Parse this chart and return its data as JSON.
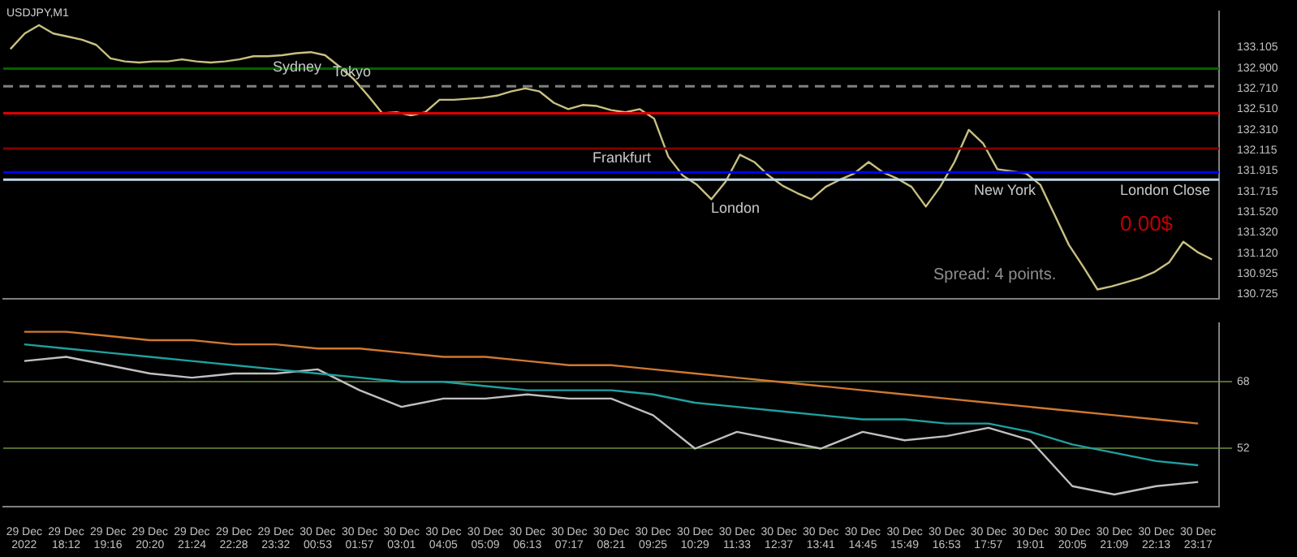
{
  "chart_data": [
    {
      "type": "line",
      "title": "USDJPY,M1",
      "categories": [
        null,
        null,
        null,
        null,
        null,
        null,
        null,
        null,
        null,
        null,
        null,
        null,
        null,
        null,
        null,
        null,
        null,
        null,
        null,
        null,
        null,
        null,
        null,
        null,
        null,
        null,
        null,
        null,
        null,
        null,
        null,
        null,
        null,
        null,
        null,
        null,
        null,
        null,
        null,
        null,
        null,
        null,
        null,
        null,
        null,
        null,
        null,
        null,
        null,
        null,
        null,
        null,
        null,
        null,
        null,
        null,
        null,
        null,
        null,
        null,
        null,
        null,
        null,
        null,
        null,
        null,
        null,
        null,
        null,
        null,
        null,
        null,
        null,
        null,
        null,
        null,
        null,
        null,
        null,
        null,
        null,
        null,
        null,
        null,
        null
      ],
      "series": [
        {
          "color": "#c8c080",
          "values": [
            133.09,
            133.24,
            133.32,
            133.24,
            133.21,
            133.18,
            133.13,
            133.0,
            132.97,
            132.96,
            132.97,
            132.97,
            132.99,
            132.97,
            132.96,
            132.97,
            132.99,
            133.02,
            133.02,
            133.03,
            133.05,
            133.06,
            133.03,
            132.92,
            132.8,
            132.64,
            132.47,
            132.48,
            132.45,
            132.48,
            132.6,
            132.6,
            132.61,
            132.62,
            132.64,
            132.68,
            132.71,
            132.68,
            132.57,
            132.51,
            132.55,
            132.54,
            132.5,
            132.48,
            132.51,
            132.42,
            132.05,
            131.87,
            131.78,
            131.64,
            131.81,
            132.07,
            132.0,
            131.87,
            131.77,
            131.7,
            131.64,
            131.76,
            131.83,
            131.89,
            132.0,
            131.9,
            131.84,
            131.76,
            131.57,
            131.76,
            132.0,
            132.31,
            132.18,
            131.93,
            131.91,
            131.89,
            131.78,
            131.49,
            131.2,
            130.99,
            130.77,
            130.8,
            130.84,
            130.88,
            130.94,
            131.03,
            131.23,
            131.13,
            131.06
          ]
        }
      ],
      "ylim": [
        130.68,
        133.45
      ],
      "yticks": [
        {
          "value": 133.105,
          "label": "133.105"
        },
        {
          "value": 132.9,
          "label": "132.900"
        },
        {
          "value": 132.71,
          "label": "132.710"
        },
        {
          "value": 132.51,
          "label": "132.510"
        },
        {
          "value": 132.31,
          "label": "132.310"
        },
        {
          "value": 132.115,
          "label": "132.115"
        },
        {
          "value": 131.915,
          "label": "131.915"
        },
        {
          "value": 131.715,
          "label": "131.715"
        },
        {
          "value": 131.52,
          "label": "131.520"
        },
        {
          "value": 131.32,
          "label": "131.320"
        },
        {
          "value": 131.12,
          "label": "131.120"
        },
        {
          "value": 130.925,
          "label": "130.925"
        },
        {
          "value": 130.725,
          "label": "130.725"
        }
      ],
      "ref_lines": [
        {
          "axis": "y",
          "value": 132.9,
          "color": "#006400"
        },
        {
          "axis": "y",
          "value": 132.73,
          "color": "#808080",
          "line_style": "dashed"
        },
        {
          "axis": "y",
          "value": 132.47,
          "color": "#e00000"
        },
        {
          "axis": "y",
          "value": 132.13,
          "color": "#800000"
        },
        {
          "axis": "y",
          "value": 131.9,
          "color": "#0000ff"
        },
        {
          "axis": "y",
          "value": 131.83,
          "color": "#c0d8e8"
        }
      ],
      "annotations": [
        "Sydney",
        "Tokyo",
        "Frankfurt",
        "London",
        "New York",
        "London Close",
        "Spread: 4 points.",
        "0.00$"
      ],
      "tick_labels": "y",
      "grid": false,
      "legend": false,
      "marker": "none",
      "line_style": "solid"
    },
    {
      "type": "line",
      "categories": [
        "29 Dec 2022",
        "29 Dec 18:12",
        "29 Dec 19:16",
        "29 Dec 20:20",
        "29 Dec 21:24",
        "29 Dec 22:28",
        "29 Dec 23:32",
        "30 Dec 00:53",
        "30 Dec 01:57",
        "30 Dec 03:01",
        "30 Dec 04:05",
        "30 Dec 05:09",
        "30 Dec 06:13",
        "30 Dec 07:17",
        "30 Dec 08:21",
        "30 Dec 09:25",
        "30 Dec 10:29",
        "30 Dec 11:33",
        "30 Dec 12:37",
        "30 Dec 13:41",
        "30 Dec 14:45",
        "30 Dec 15:49",
        "30 Dec 16:53",
        "30 Dec 17:57",
        "30 Dec 19:01",
        "30 Dec 20:05",
        "30 Dec 21:09",
        "30 Dec 22:13",
        "30 Dec 23:17"
      ],
      "series": [
        {
          "color": "#d07830",
          "values": [
            80,
            80,
            79,
            78,
            78,
            77,
            77,
            76,
            76,
            75,
            74,
            74,
            73,
            72,
            72,
            71,
            70,
            69,
            68,
            67,
            66,
            65,
            64,
            63,
            62,
            61,
            60,
            59,
            58
          ]
        },
        {
          "color": "#20a0a0",
          "values": [
            77,
            76,
            75,
            74,
            73,
            72,
            71,
            70,
            69,
            68,
            68,
            67,
            66,
            66,
            66,
            65,
            63,
            62,
            61,
            60,
            59,
            59,
            58,
            58,
            56,
            53,
            51,
            49,
            48
          ]
        },
        {
          "color": "#c0c0c0",
          "values": [
            73,
            74,
            72,
            70,
            69,
            70,
            70,
            71,
            66,
            62,
            64,
            64,
            65,
            64,
            64,
            60,
            52,
            56,
            54,
            52,
            56,
            54,
            55,
            57,
            54,
            43,
            41,
            43,
            44
          ]
        }
      ],
      "ylim": [
        38,
        82
      ],
      "yticks": [
        68,
        52
      ],
      "grid": "y",
      "legend": false,
      "marker": "none",
      "line_style": "solid"
    }
  ]
}
